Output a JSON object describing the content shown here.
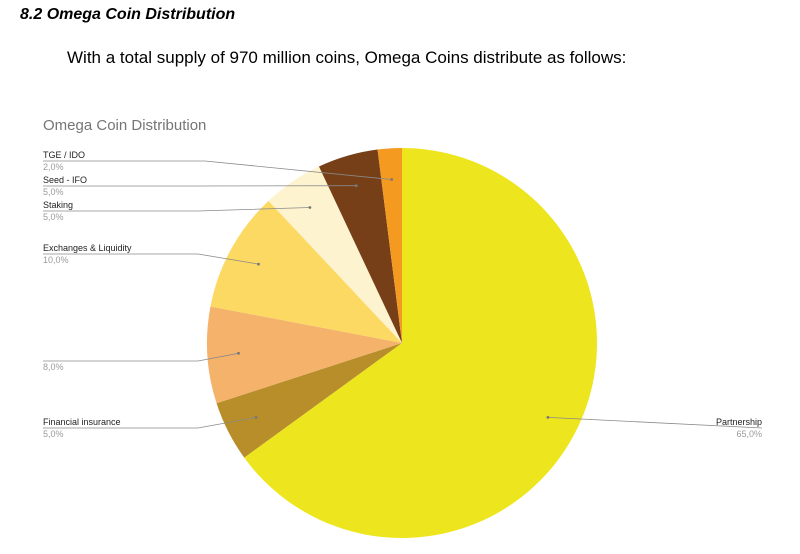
{
  "document": {
    "section_heading": "8.2 Omega Coin Distribution",
    "intro": "With a total supply of 970 million coins, Omega Coins distribute as follows:"
  },
  "chart_data": {
    "type": "pie",
    "title": "Omega Coin Distribution",
    "value_format": "comma-decimal percent",
    "slices": [
      {
        "label": "Partnership",
        "value": 65.0,
        "value_text": "65,0%",
        "color": "#EDE51E"
      },
      {
        "label": "Financial insurance",
        "value": 5.0,
        "value_text": "5,0%",
        "color": "#B88E2A"
      },
      {
        "label": "",
        "value": 8.0,
        "value_text": "8,0%",
        "color": "#F4B26B"
      },
      {
        "label": "Exchanges & Liquidity",
        "value": 10.0,
        "value_text": "10,0%",
        "color": "#FBD963"
      },
      {
        "label": "Staking",
        "value": 5.0,
        "value_text": "5,0%",
        "color": "#FEF3CF"
      },
      {
        "label": "Seed - IFO",
        "value": 5.0,
        "value_text": "5,0%",
        "color": "#773F18"
      },
      {
        "label": "TGE / IDO",
        "value": 2.0,
        "value_text": "2,0%",
        "color": "#F59A20"
      }
    ]
  }
}
